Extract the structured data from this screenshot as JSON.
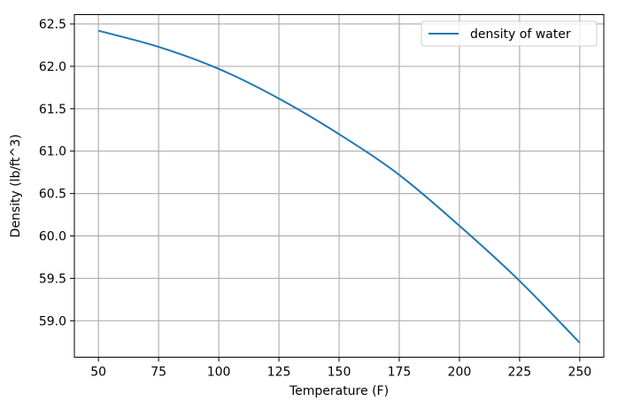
{
  "chart_data": {
    "type": "line",
    "title": "",
    "xlabel": "Temperature (F)",
    "ylabel": "Density (lb/ft^3)",
    "xlim": [
      40,
      260
    ],
    "ylim": [
      58.57,
      62.61
    ],
    "xticks": [
      50,
      75,
      100,
      125,
      150,
      175,
      200,
      225,
      250
    ],
    "yticks": [
      59.0,
      59.5,
      60.0,
      60.5,
      61.0,
      61.5,
      62.0,
      62.5
    ],
    "ytick_labels": [
      "59.0",
      "59.5",
      "60.0",
      "60.5",
      "61.0",
      "61.5",
      "62.0",
      "62.5"
    ],
    "grid": true,
    "legend": "top-right",
    "series": [
      {
        "name": "density of water",
        "color": "#1f77b4",
        "x": [
          50,
          75,
          100,
          125,
          150,
          175,
          200,
          225,
          250
        ],
        "y": [
          62.42,
          62.23,
          61.97,
          61.62,
          61.2,
          60.72,
          60.12,
          59.47,
          58.74
        ]
      }
    ]
  }
}
